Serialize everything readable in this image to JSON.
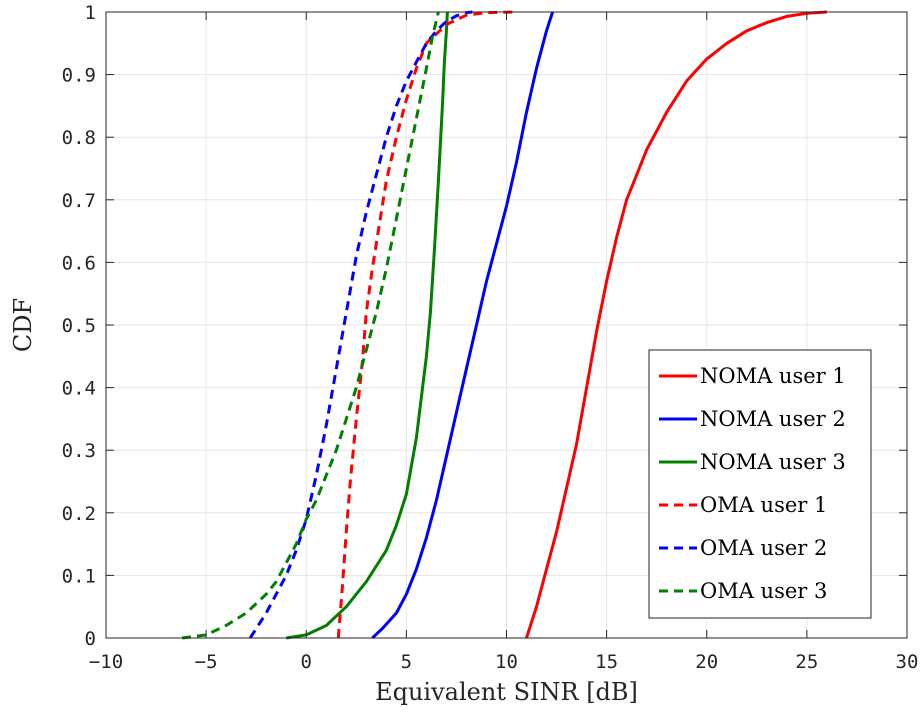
{
  "chart_data": {
    "type": "line",
    "title": "",
    "xlabel": "Equivalent SINR [dB]",
    "ylabel": "CDF",
    "xlim": [
      -10,
      30
    ],
    "ylim": [
      0,
      1
    ],
    "xticks": [
      -10,
      -5,
      0,
      5,
      10,
      15,
      20,
      25,
      30
    ],
    "yticks": [
      0,
      0.1,
      0.2,
      0.3,
      0.4,
      0.5,
      0.6,
      0.7,
      0.8,
      0.9,
      1
    ],
    "xtick_labels": [
      "−10",
      "−5",
      "0",
      "5",
      "10",
      "15",
      "20",
      "25",
      "30"
    ],
    "ytick_labels": [
      "0",
      "0.1",
      "0.2",
      "0.3",
      "0.4",
      "0.5",
      "0.6",
      "0.7",
      "0.8",
      "0.9",
      "1"
    ],
    "grid": true,
    "legend_position": "bottom-right",
    "series": [
      {
        "name": "NOMA user 1",
        "color": "#ff0000",
        "dash": "solid",
        "x": [
          11.0,
          11.5,
          12.0,
          12.5,
          13.0,
          13.5,
          14.0,
          14.5,
          15.0,
          15.5,
          16.0,
          16.5,
          17.0,
          18.0,
          19.0,
          20.0,
          21.0,
          22.0,
          23.0,
          24.0,
          25.0,
          26.0
        ],
        "y": [
          0.0,
          0.05,
          0.11,
          0.17,
          0.24,
          0.31,
          0.4,
          0.49,
          0.57,
          0.64,
          0.7,
          0.74,
          0.78,
          0.84,
          0.89,
          0.925,
          0.95,
          0.97,
          0.983,
          0.993,
          0.998,
          1.0
        ]
      },
      {
        "name": "NOMA user 2",
        "color": "#0000ff",
        "dash": "solid",
        "x": [
          3.3,
          3.8,
          4.5,
          5.0,
          5.5,
          6.0,
          6.5,
          7.0,
          7.5,
          8.0,
          8.5,
          9.0,
          9.5,
          10.0,
          10.5,
          11.0,
          11.5,
          12.0,
          12.3
        ],
        "y": [
          0.0,
          0.015,
          0.04,
          0.07,
          0.11,
          0.16,
          0.22,
          0.29,
          0.36,
          0.43,
          0.5,
          0.57,
          0.63,
          0.69,
          0.76,
          0.84,
          0.91,
          0.97,
          1.0
        ]
      },
      {
        "name": "NOMA user 3",
        "color": "#008000",
        "dash": "solid",
        "x": [
          -1.0,
          0.0,
          1.0,
          2.0,
          3.0,
          4.0,
          4.5,
          5.0,
          5.5,
          6.0,
          6.2,
          6.4,
          6.6,
          6.8,
          6.9,
          7.0,
          7.05
        ],
        "y": [
          0.0,
          0.005,
          0.02,
          0.05,
          0.09,
          0.14,
          0.18,
          0.23,
          0.32,
          0.45,
          0.52,
          0.62,
          0.73,
          0.85,
          0.92,
          0.97,
          1.0
        ]
      },
      {
        "name": "OMA user 1",
        "color": "#ff0000",
        "dash": "dashed",
        "x": [
          1.6,
          1.8,
          2.0,
          2.2,
          2.5,
          2.8,
          3.0,
          3.3,
          3.6,
          4.0,
          4.5,
          5.0,
          5.5,
          6.0,
          7.0,
          8.0,
          9.0,
          10.5
        ],
        "y": [
          0.0,
          0.08,
          0.17,
          0.25,
          0.35,
          0.44,
          0.52,
          0.59,
          0.65,
          0.73,
          0.8,
          0.86,
          0.91,
          0.95,
          0.98,
          0.995,
          0.999,
          1.0
        ]
      },
      {
        "name": "OMA user 2",
        "color": "#0000ff",
        "dash": "dashed",
        "x": [
          -2.8,
          -2.0,
          -1.5,
          -1.0,
          -0.5,
          0.0,
          0.5,
          1.0,
          1.5,
          2.0,
          2.5,
          3.0,
          3.5,
          4.0,
          4.5,
          5.0,
          5.5,
          6.0,
          6.5,
          7.0,
          7.5,
          8.0,
          8.3
        ],
        "y": [
          0.0,
          0.04,
          0.07,
          0.1,
          0.14,
          0.19,
          0.26,
          0.34,
          0.43,
          0.52,
          0.61,
          0.68,
          0.74,
          0.8,
          0.85,
          0.89,
          0.92,
          0.95,
          0.97,
          0.985,
          0.994,
          0.999,
          1.0
        ]
      },
      {
        "name": "OMA user 3",
        "color": "#008000",
        "dash": "dashed",
        "x": [
          -6.2,
          -5.0,
          -4.0,
          -3.0,
          -2.0,
          -1.5,
          -1.0,
          -0.5,
          0.0,
          0.5,
          1.0,
          1.5,
          2.0,
          2.5,
          3.0,
          3.5,
          4.0,
          4.5,
          5.0,
          5.5,
          6.0,
          6.3,
          6.6
        ],
        "y": [
          0.0,
          0.005,
          0.02,
          0.04,
          0.07,
          0.09,
          0.12,
          0.15,
          0.19,
          0.22,
          0.26,
          0.3,
          0.35,
          0.4,
          0.46,
          0.52,
          0.59,
          0.67,
          0.75,
          0.83,
          0.91,
          0.96,
          1.0
        ]
      }
    ]
  }
}
